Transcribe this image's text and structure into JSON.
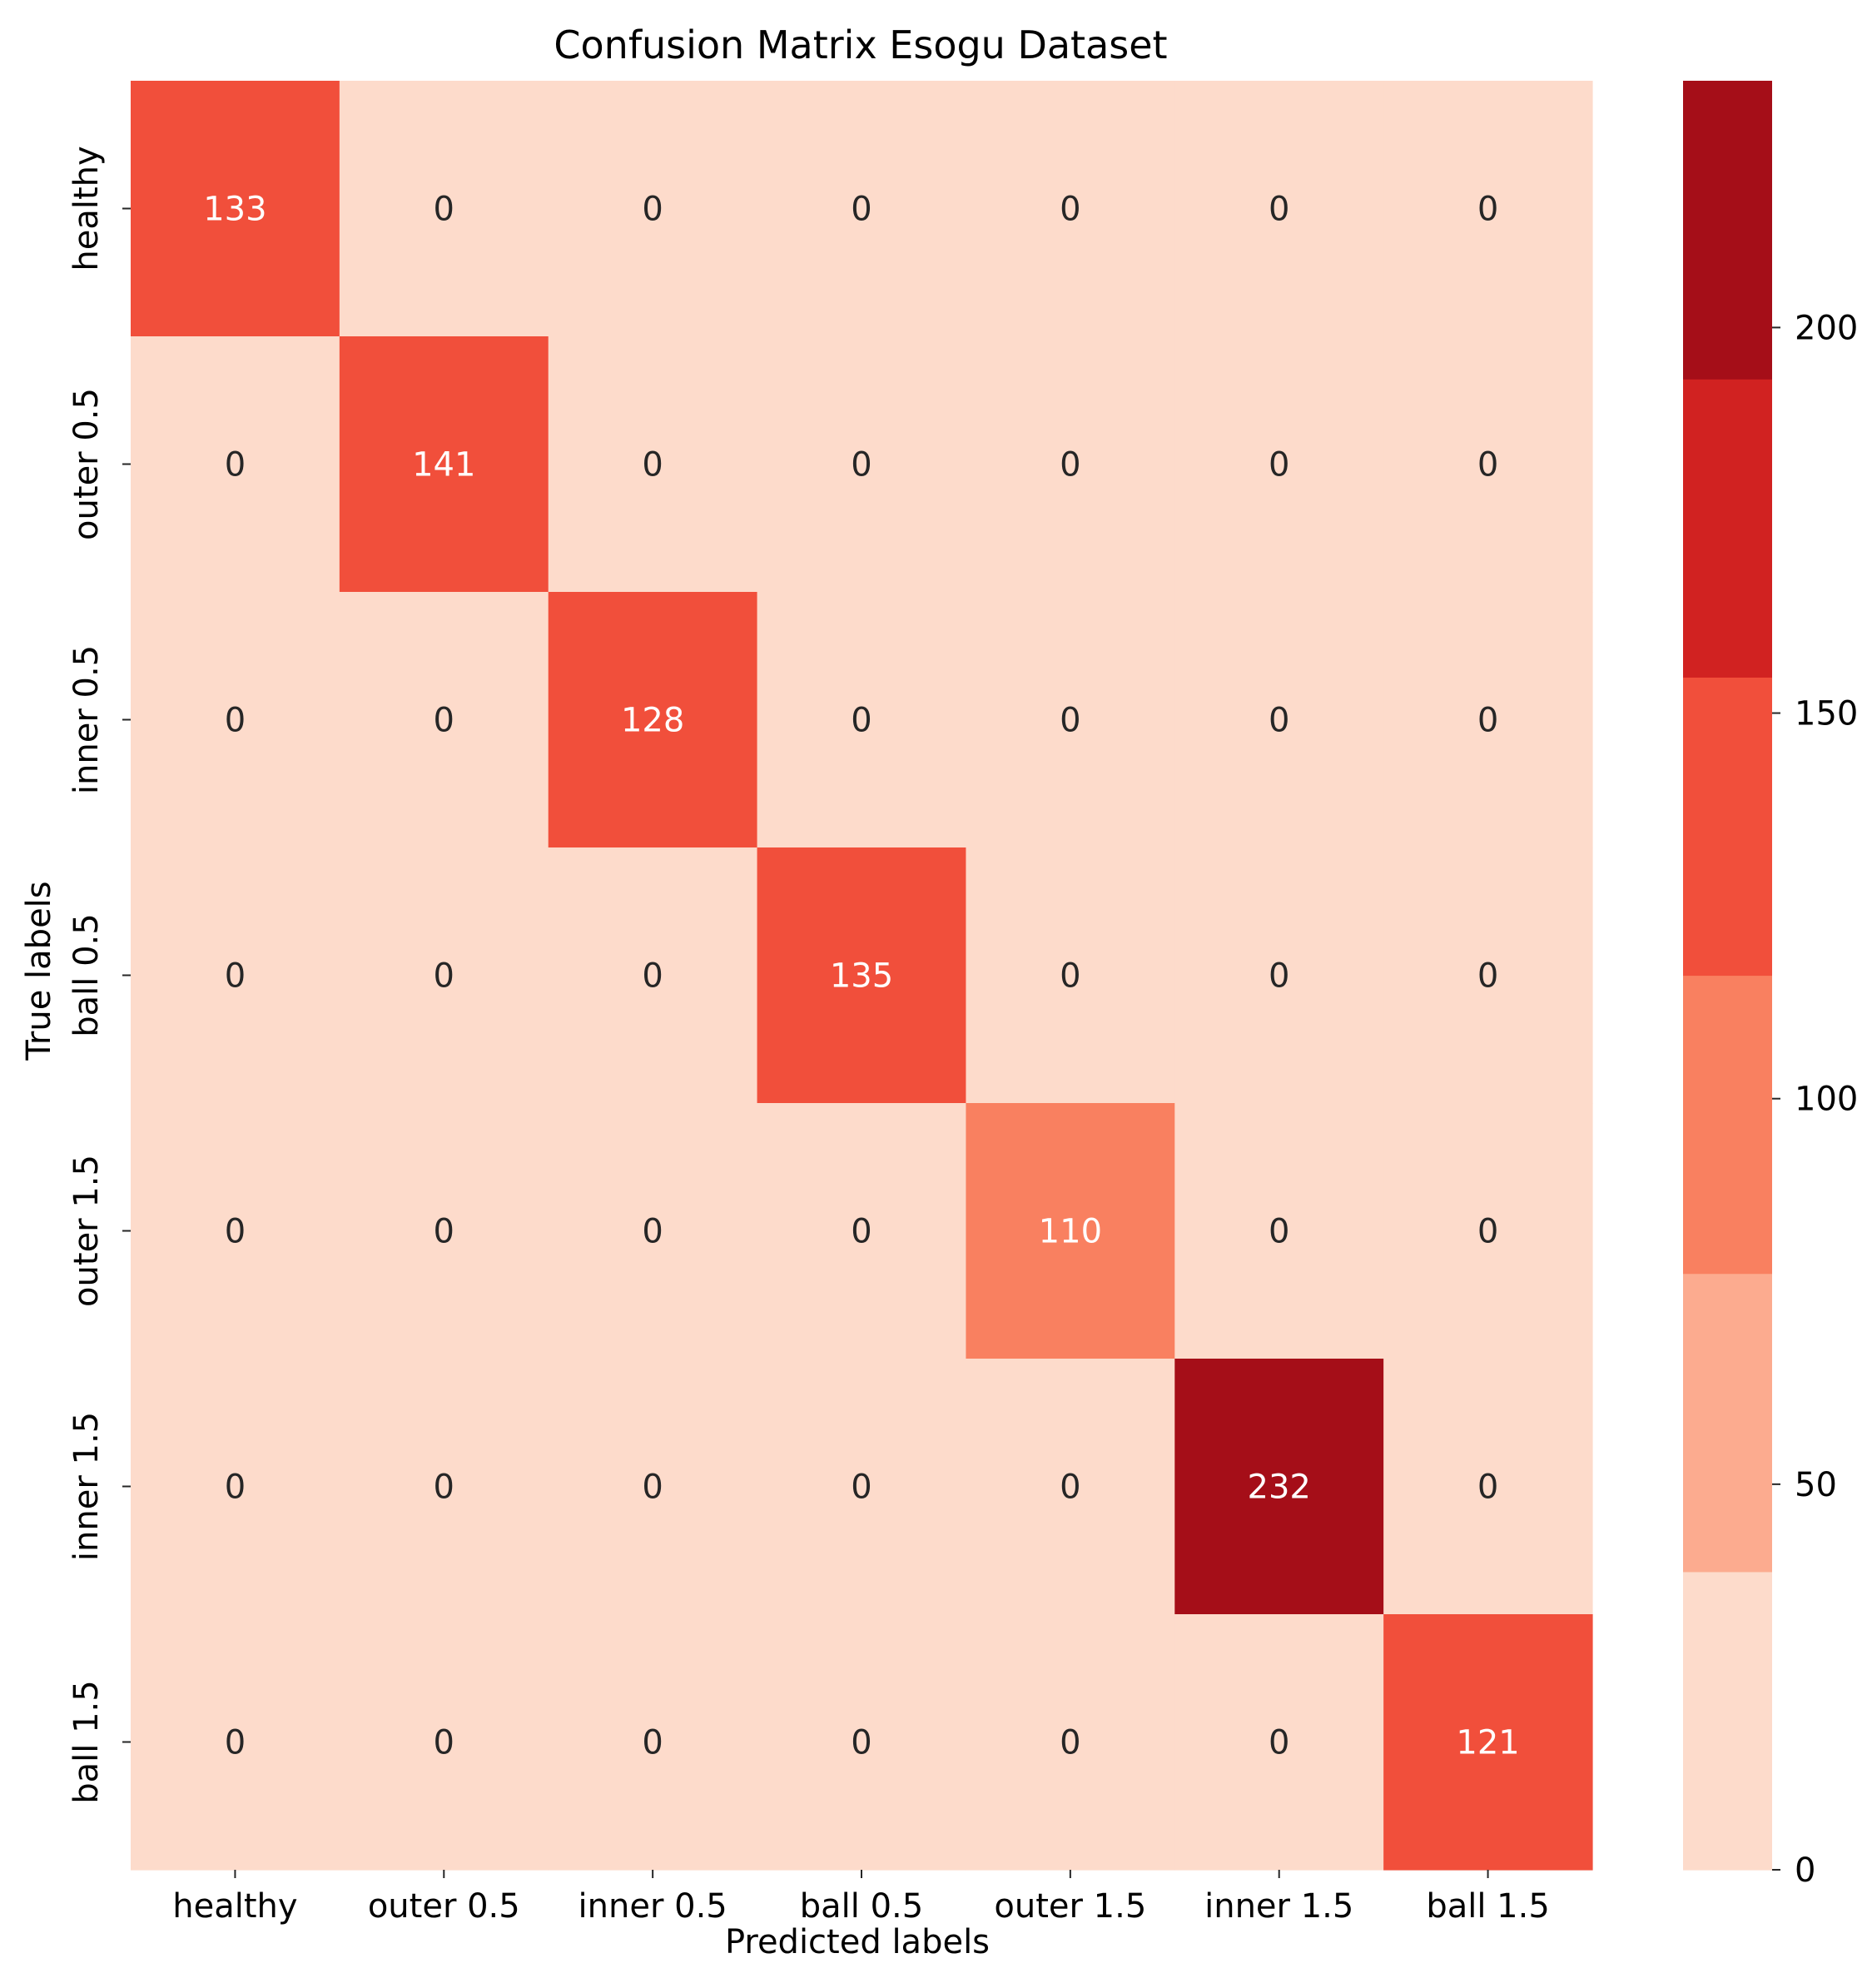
{
  "chart_data": {
    "type": "heatmap",
    "title": "Confusion Matrix Esogu Dataset",
    "xlabel": "Predicted labels",
    "ylabel": "True labels",
    "x_categories": [
      "healthy",
      "outer 0.5",
      "inner 0.5",
      "ball 0.5",
      "outer 1.5",
      "inner 1.5",
      "ball 1.5"
    ],
    "y_categories": [
      "healthy",
      "outer 0.5",
      "inner 0.5",
      "ball 0.5",
      "outer 1.5",
      "inner 1.5",
      "ball 1.5"
    ],
    "matrix": [
      [
        133,
        0,
        0,
        0,
        0,
        0,
        0
      ],
      [
        0,
        141,
        0,
        0,
        0,
        0,
        0
      ],
      [
        0,
        0,
        128,
        0,
        0,
        0,
        0
      ],
      [
        0,
        0,
        0,
        135,
        0,
        0,
        0
      ],
      [
        0,
        0,
        0,
        0,
        110,
        0,
        0
      ],
      [
        0,
        0,
        0,
        0,
        0,
        232,
        0
      ],
      [
        0,
        0,
        0,
        0,
        0,
        0,
        121
      ]
    ],
    "colorbar": {
      "vmin": 0,
      "vmax": 232,
      "ticks": [
        0,
        50,
        100,
        150,
        200
      ],
      "tick_labels": [
        "0",
        "50",
        "100",
        "150",
        "200"
      ],
      "palette": [
        "#fddbcb",
        "#fcab8f",
        "#f98060",
        "#f14f3b",
        "#d12221",
        "#a50e18"
      ]
    },
    "text_colors": {
      "dark_text": "#262626",
      "light_text": "#ffffff"
    },
    "grid": false
  }
}
